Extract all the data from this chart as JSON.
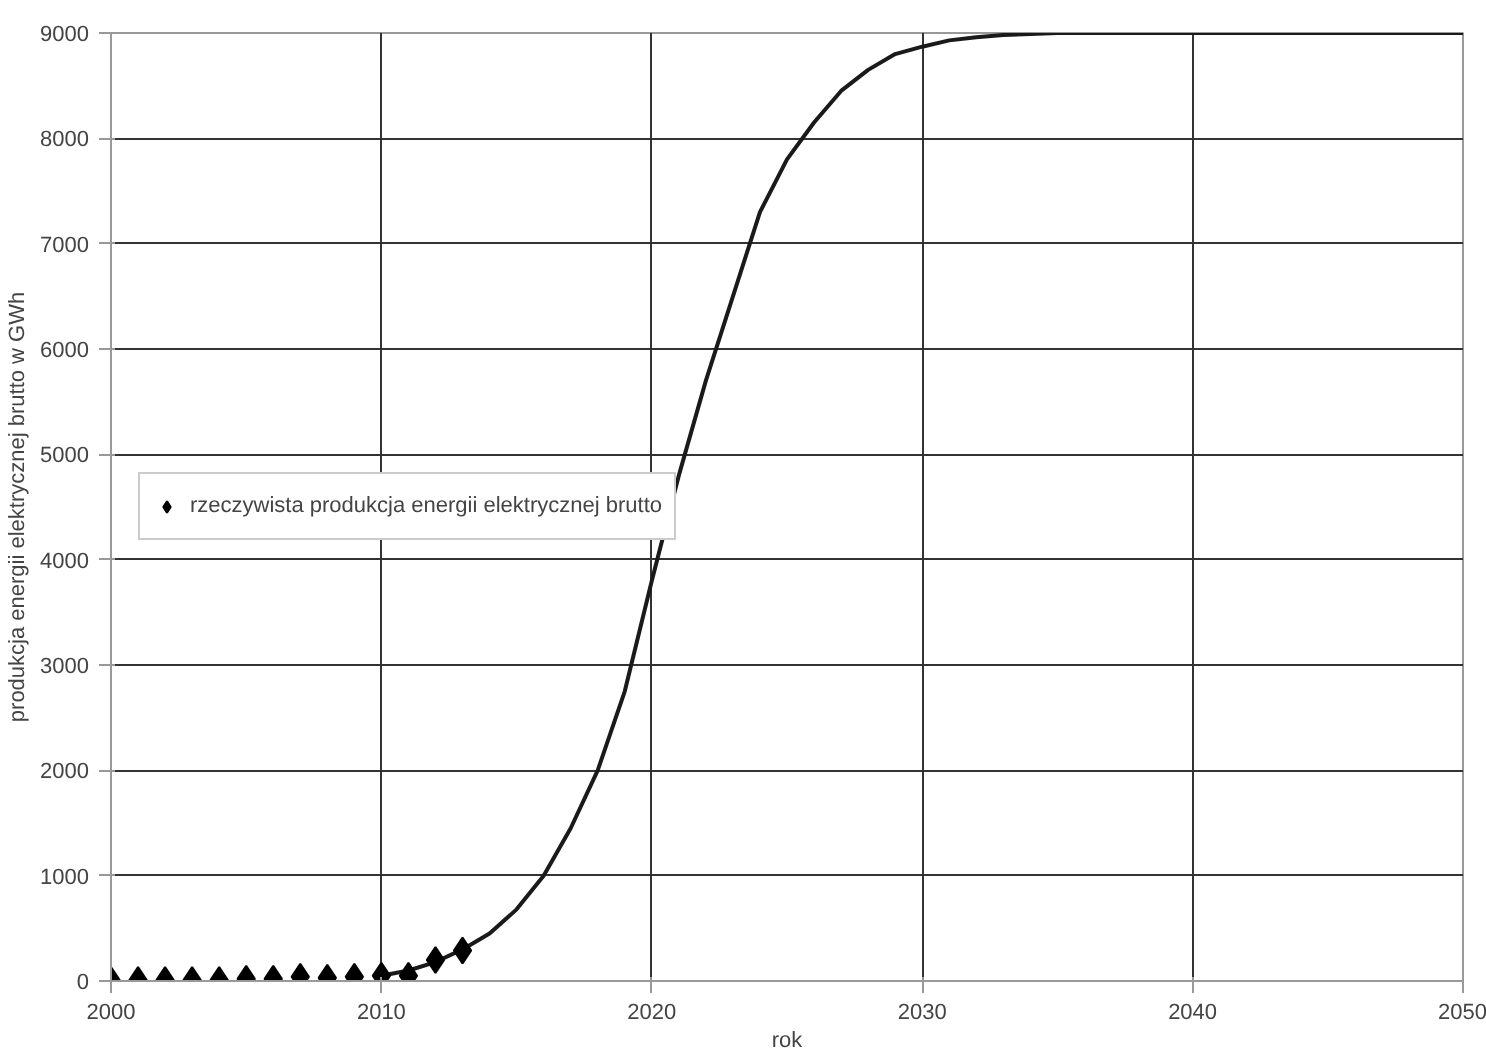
{
  "chart_data": {
    "type": "line",
    "xlabel": "rok",
    "ylabel": "produkcja energii elektrycznej brutto w GWh",
    "xlim": [
      2000,
      2050
    ],
    "ylim": [
      0,
      9000
    ],
    "xticks": [
      2000,
      2010,
      2020,
      2030,
      2040,
      2050
    ],
    "yticks": [
      0,
      1000,
      2000,
      3000,
      4000,
      5000,
      6000,
      7000,
      8000,
      9000
    ],
    "grid": true,
    "legend": "left",
    "series": [
      {
        "color": "#1a1a1a",
        "marker": "none",
        "line_style": "solid",
        "x": [
          2010,
          2011,
          2012,
          2013,
          2014,
          2015,
          2016,
          2017,
          2018,
          2019,
          2020,
          2021,
          2022,
          2023,
          2024,
          2025,
          2026,
          2027,
          2028,
          2029,
          2030,
          2031,
          2032,
          2033,
          2034,
          2035,
          2040,
          2050
        ],
        "values": [
          50,
          100,
          180,
          300,
          450,
          680,
          1000,
          1450,
          2000,
          2750,
          3800,
          4800,
          5700,
          6500,
          7300,
          7800,
          8150,
          8450,
          8650,
          8800,
          8870,
          8930,
          8960,
          8980,
          8990,
          9000,
          9000,
          9000
        ]
      },
      {
        "type": "scatter",
        "name": "rzeczywista produkcja energii elektrycznej brutto",
        "color": "#000000",
        "marker": "diamond",
        "x": [
          2000,
          2001,
          2002,
          2003,
          2004,
          2005,
          2006,
          2007,
          2008,
          2009,
          2010,
          2011,
          2012,
          2013
        ],
        "values": [
          10,
          10,
          10,
          10,
          10,
          20,
          20,
          40,
          30,
          40,
          50,
          50,
          200,
          290
        ]
      }
    ]
  }
}
